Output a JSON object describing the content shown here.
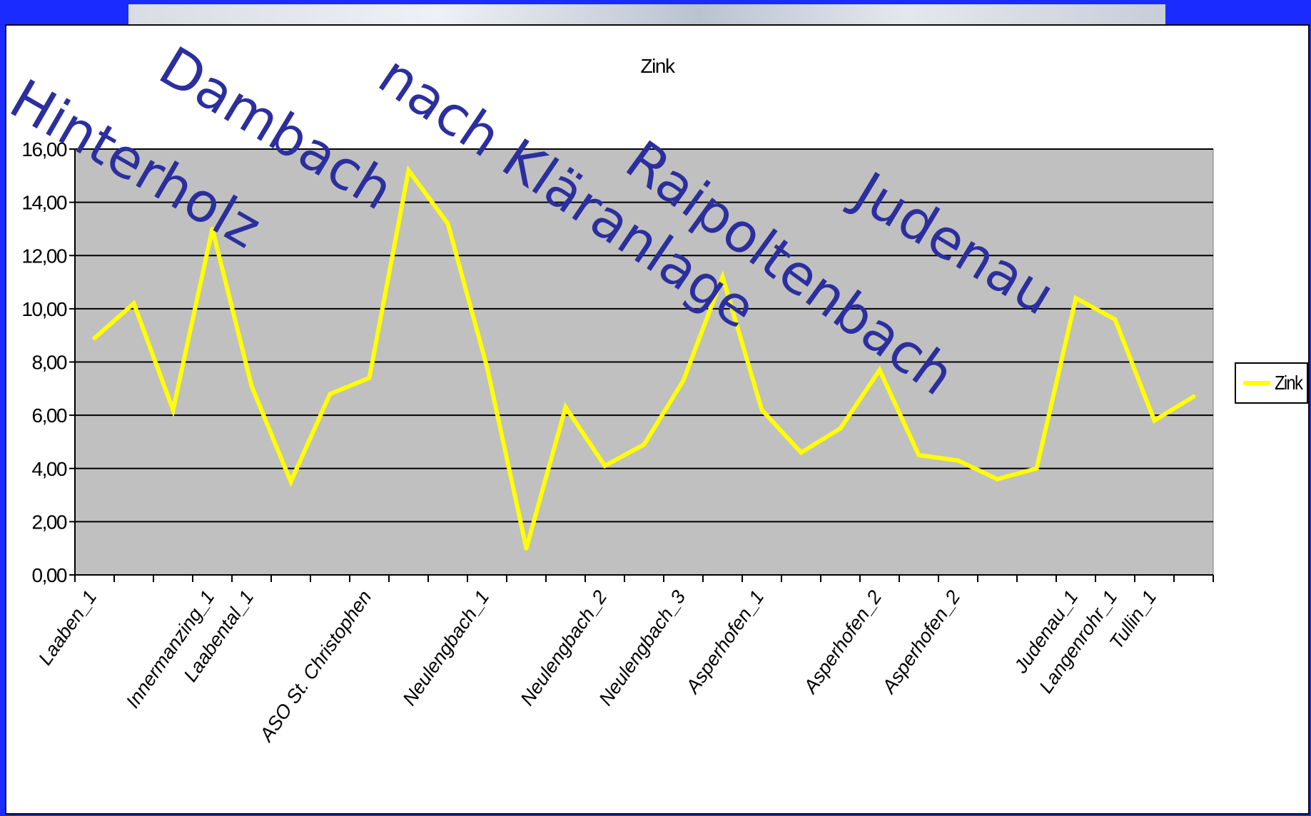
{
  "chart_data": {
    "type": "line",
    "title": "Zink",
    "xlabel": "",
    "ylabel": "",
    "ylim": [
      0,
      16
    ],
    "yticks": [
      "0,00",
      "2,00",
      "4,00",
      "6,00",
      "8,00",
      "10,00",
      "12,00",
      "14,00",
      "16,00"
    ],
    "grid": true,
    "legend": "right",
    "categories": [
      "Laaben_1",
      "",
      "",
      "Innermanzing_1",
      "Laabental_1",
      "",
      "",
      "ASO St. Christophen",
      "",
      "",
      "Neulengbach_1",
      "",
      "",
      "Neulengbach_2",
      "",
      "Neulengbach_3",
      "",
      "Asperhofen_1",
      "",
      "",
      "Asperhofen_2",
      "",
      "Asperhofen_2",
      "",
      "",
      "Judenau_1",
      "Langenrohr_1",
      "Tullin_1",
      ""
    ],
    "series": [
      {
        "name": "Zink",
        "color": "#ffff00",
        "values": [
          8.9,
          10.2,
          6.2,
          13.0,
          7.1,
          3.5,
          6.8,
          7.4,
          15.2,
          13.2,
          7.8,
          1.0,
          6.3,
          4.1,
          4.9,
          7.3,
          11.2,
          6.2,
          4.6,
          5.5,
          7.7,
          4.5,
          4.3,
          3.6,
          4.0,
          10.4,
          9.6,
          5.8,
          6.7
        ]
      }
    ],
    "annotations": [
      "Hinterholz",
      "Dambach",
      "nach Kläranlage",
      "Raipoltenbach",
      "Judenau"
    ]
  },
  "colors": {
    "background": "#1a2bff",
    "plot_area": "#c0c0c0",
    "gridline": "#000000",
    "annotation_text": "#2b2f9e"
  }
}
